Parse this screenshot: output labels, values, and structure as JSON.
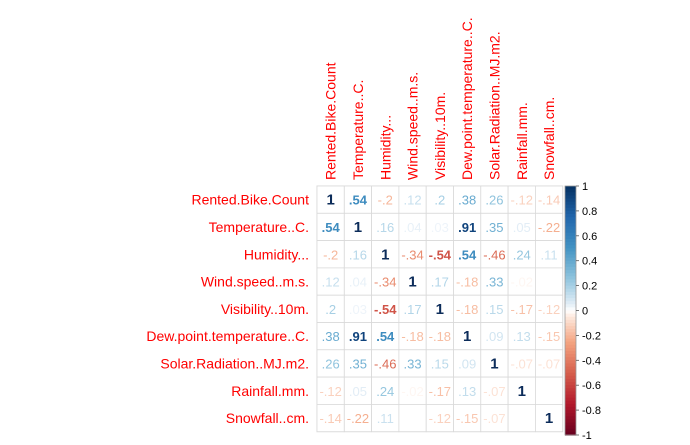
{
  "chart_data": {
    "type": "heatmap",
    "title": "",
    "variables": [
      "Rented.Bike.Count",
      "Temperature..C.",
      "Humidity...",
      "Wind.speed..m.s.",
      "Visibility..10m.",
      "Dew.point.temperature..C.",
      "Solar.Radiation..MJ.m2.",
      "Rainfall.mm.",
      "Snowfall..cm."
    ],
    "matrix": [
      [
        1,
        0.54,
        -0.2,
        0.12,
        0.2,
        0.38,
        0.26,
        -0.12,
        -0.14
      ],
      [
        0.54,
        1,
        0.16,
        0.04,
        0.03,
        0.91,
        0.35,
        0.05,
        -0.22
      ],
      [
        -0.2,
        0.16,
        1,
        -0.34,
        -0.54,
        0.54,
        -0.46,
        0.24,
        0.11
      ],
      [
        0.12,
        0.04,
        -0.34,
        1,
        0.17,
        -0.18,
        0.33,
        -0.02,
        0
      ],
      [
        0.2,
        0.03,
        -0.54,
        0.17,
        1,
        -0.18,
        0.15,
        -0.17,
        -0.12
      ],
      [
        0.38,
        0.91,
        0.54,
        -0.18,
        -0.18,
        1,
        0.09,
        0.13,
        -0.15
      ],
      [
        0.26,
        0.35,
        -0.46,
        0.33,
        0.15,
        0.09,
        1,
        -0.07,
        -0.07
      ],
      [
        -0.12,
        0.05,
        0.24,
        -0.02,
        -0.17,
        0.13,
        -0.07,
        1,
        0
      ],
      [
        -0.14,
        -0.22,
        0.11,
        0,
        -0.12,
        -0.15,
        -0.07,
        0,
        1
      ]
    ],
    "colorbar": {
      "range": [
        -1,
        1
      ],
      "ticks": [
        "1",
        "0.8",
        "0.6",
        "0.4",
        "0.2",
        "0",
        "-0.2",
        "-0.4",
        "-0.6",
        "-0.8",
        "-1"
      ],
      "tick_values": [
        1,
        0.8,
        0.6,
        0.4,
        0.2,
        0,
        -0.2,
        -0.4,
        -0.6,
        -0.8,
        -1
      ]
    },
    "grid": true,
    "legend": "right"
  },
  "colors": {
    "label": "#ff0000",
    "grid": "#d9d9d9",
    "positive_strong": "#053061",
    "positive_mid": "#4393c3",
    "neutral": "#ffffff",
    "negative_mid": "#d6604d",
    "negative_strong": "#67001f",
    "diagonal_text": "#0c2c5a"
  }
}
